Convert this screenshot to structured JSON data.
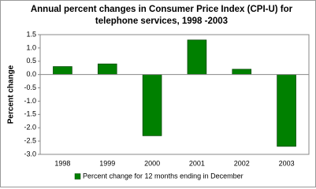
{
  "chart_data": {
    "type": "bar",
    "title": [
      "Annual percent changes in Consumer Price Index  (CPI-U) for",
      "telephone services, 1998 -2003"
    ],
    "y_label": "Percent change",
    "categories": [
      "1998",
      "1999",
      "2000",
      "2001",
      "2002",
      "2003"
    ],
    "series": [
      {
        "name": "Percent change for 12 months ending in December",
        "color": "#008000",
        "values": [
          0.3,
          0.4,
          -2.3,
          1.3,
          0.2,
          -2.7
        ]
      }
    ],
    "ylim": [
      -3.0,
      1.5
    ],
    "yticks": [
      {
        "value": -3.0,
        "label": "-3.0"
      },
      -2.5,
      {
        "value": -2.0,
        "label": "-2.0"
      },
      -1.5,
      {
        "value": -1.0,
        "label": "-1.0"
      },
      -0.5,
      {
        "value": 0.0,
        "label": "0.0"
      },
      0.5,
      {
        "value": 1.0,
        "label": "1.0"
      },
      1.5
    ],
    "grid": false,
    "legend": "bottom"
  }
}
